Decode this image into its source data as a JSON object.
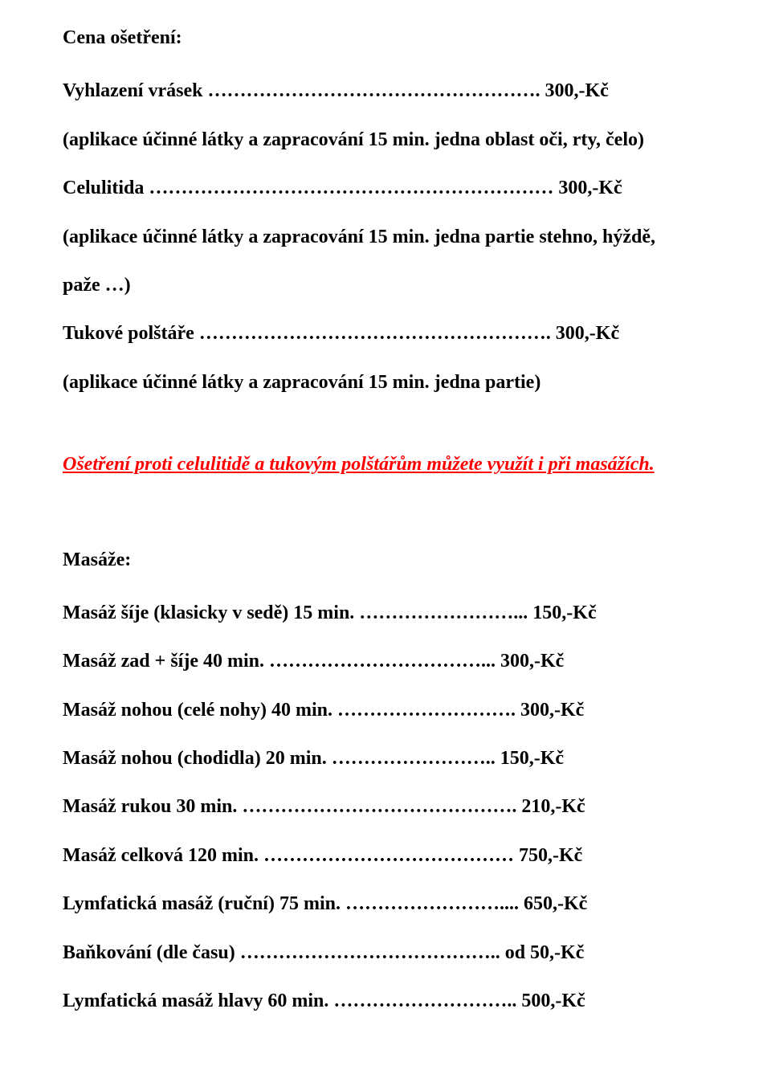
{
  "lines": [
    {
      "text": "Cena ošetření:",
      "classes": "line bold"
    },
    {
      "gap": "gap-sm"
    },
    {
      "text": "Vyhlazení vrásek ……………………………………………. 300,-Kč",
      "classes": "line bold"
    },
    {
      "text": "(aplikace účinné látky a zapracování 15 min. jedna oblast oči, rty, čelo)",
      "classes": "line bold"
    },
    {
      "text": "Celulitida ……………………………………………………… 300,-Kč",
      "classes": "line bold"
    },
    {
      "text": "(aplikace účinné látky a zapracování 15 min. jedna partie stehno, hýždě,",
      "classes": "line bold"
    },
    {
      "text": "paže …)",
      "classes": "line bold"
    },
    {
      "text": "Tukové polštáře ………………………………………………. 300,-Kč",
      "classes": "line bold"
    },
    {
      "text": "(aplikace účinné látky a zapracování 15 min. jedna partie)",
      "classes": "line bold"
    },
    {
      "gap": "gap-lg"
    },
    {
      "text": "Ošetření proti celulitidě a tukovým polštářům můžete využít i při masážích.",
      "classes": "line red-italic-underline"
    },
    {
      "gap": "gap-xl"
    },
    {
      "text": "Masáže:",
      "classes": "line bold"
    },
    {
      "gap": "gap-sm"
    },
    {
      "text": "Masáž šíje (klasicky v sedě) 15 min. ……………………... 150,-Kč",
      "classes": "line bold"
    },
    {
      "text": "Masáž zad + šíje 40 min. ……………………………... 300,-Kč",
      "classes": "line bold"
    },
    {
      "text": "Masáž nohou (celé nohy) 40 min. ………………………. 300,-Kč",
      "classes": "line bold"
    },
    {
      "text": "Masáž nohou (chodidla) 20 min. …………………….. 150,-Kč",
      "classes": "line bold"
    },
    {
      "text": "Masáž rukou 30 min. ……………………………………. 210,-Kč",
      "classes": "line bold"
    },
    {
      "text": "Masáž celková 120 min. ………………………………… 750,-Kč",
      "classes": "line bold"
    },
    {
      "text": "Lymfatická masáž (ruční) 75 min. …………………….... 650,-Kč",
      "classes": "line bold"
    },
    {
      "text": "Baňkování (dle času) ………………………………….. od 50,-Kč",
      "classes": "line bold"
    },
    {
      "text": "Lymfatická masáž hlavy 60 min. ……………………….. 500,-Kč",
      "classes": "line bold"
    }
  ]
}
